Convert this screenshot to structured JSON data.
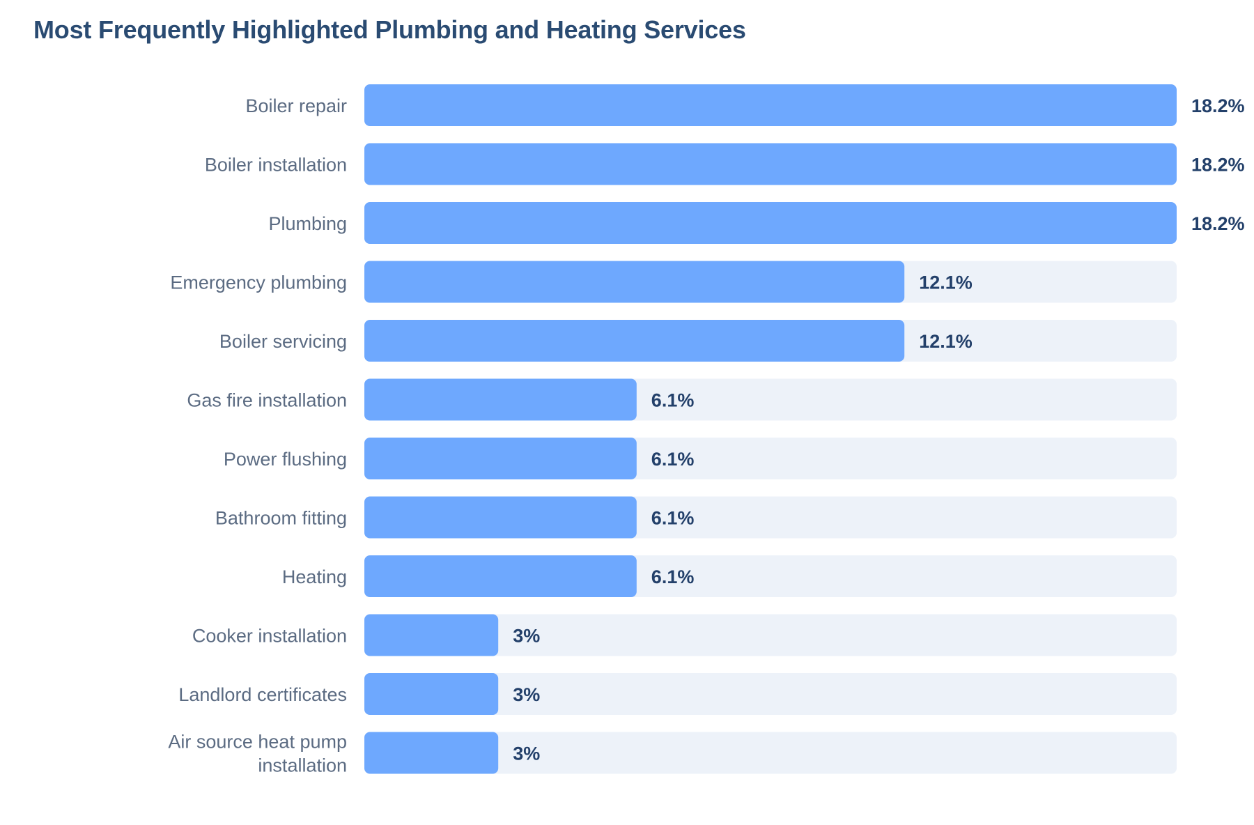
{
  "chart_data": {
    "type": "bar",
    "orientation": "horizontal",
    "title": "Most Frequently Highlighted Plumbing and Heating Services",
    "xlabel": "",
    "ylabel": "",
    "xlim": [
      0,
      18.2
    ],
    "grid": false,
    "legend": "none",
    "categories": [
      "Boiler repair",
      "Boiler installation",
      "Plumbing",
      "Emergency plumbing",
      "Boiler servicing",
      "Gas fire installation",
      "Power flushing",
      "Bathroom fitting",
      "Heating",
      "Cooker installation",
      "Landlord certificates",
      "Air source heat pump installation"
    ],
    "category_lines": [
      [
        "Boiler repair"
      ],
      [
        "Boiler installation"
      ],
      [
        "Plumbing"
      ],
      [
        "Emergency plumbing"
      ],
      [
        "Boiler servicing"
      ],
      [
        "Gas fire installation"
      ],
      [
        "Power flushing"
      ],
      [
        "Bathroom fitting"
      ],
      [
        "Heating"
      ],
      [
        "Cooker installation"
      ],
      [
        "Landlord certificates"
      ],
      [
        "Air source heat pump",
        "installation"
      ]
    ],
    "values": [
      18.2,
      18.2,
      18.2,
      12.1,
      12.1,
      6.1,
      6.1,
      6.1,
      6.1,
      3,
      3,
      3
    ],
    "value_labels": [
      "18.2%",
      "18.2%",
      "18.2%",
      "12.1%",
      "12.1%",
      "6.1%",
      "6.1%",
      "6.1%",
      "6.1%",
      "3%",
      "3%",
      "3%"
    ],
    "colors": {
      "bar": "#6ea8fe",
      "track": "#edf2f9",
      "title": "#2a4b72",
      "category_text": "#5b6b82",
      "value_text": "#23406a"
    }
  }
}
